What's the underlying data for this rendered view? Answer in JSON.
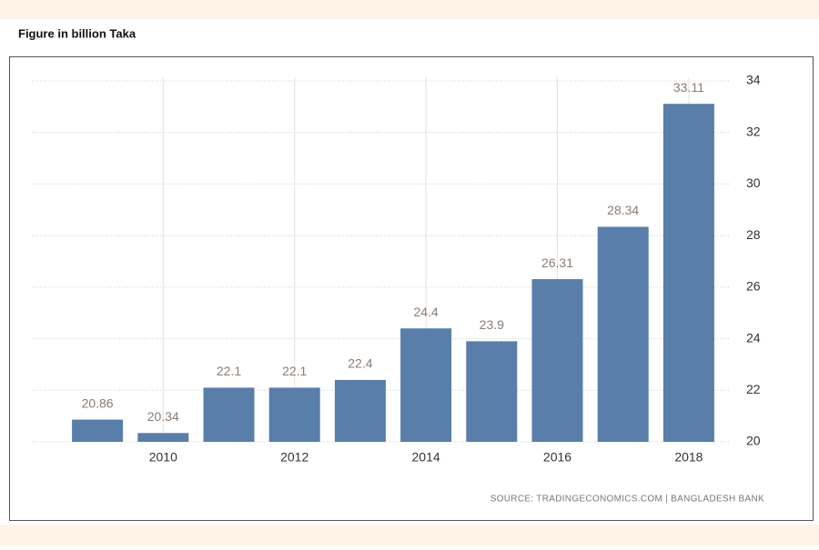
{
  "chart_data": {
    "type": "bar",
    "title": "Figure in billion Taka",
    "source": "SOURCE: TRADINGECONOMICS.COM | BANGLADESH BANK",
    "categories": [
      null,
      "2010",
      null,
      "2012",
      null,
      "2014",
      null,
      "2016",
      null,
      "2018"
    ],
    "values": [
      20.86,
      20.34,
      22.1,
      22.1,
      22.4,
      24.4,
      23.9,
      26.31,
      28.34,
      33.11
    ],
    "color": "#587ea9",
    "ylim": [
      20,
      34
    ],
    "yticks": [
      20,
      22,
      24,
      26,
      28,
      30,
      32,
      34
    ],
    "grid": true
  }
}
